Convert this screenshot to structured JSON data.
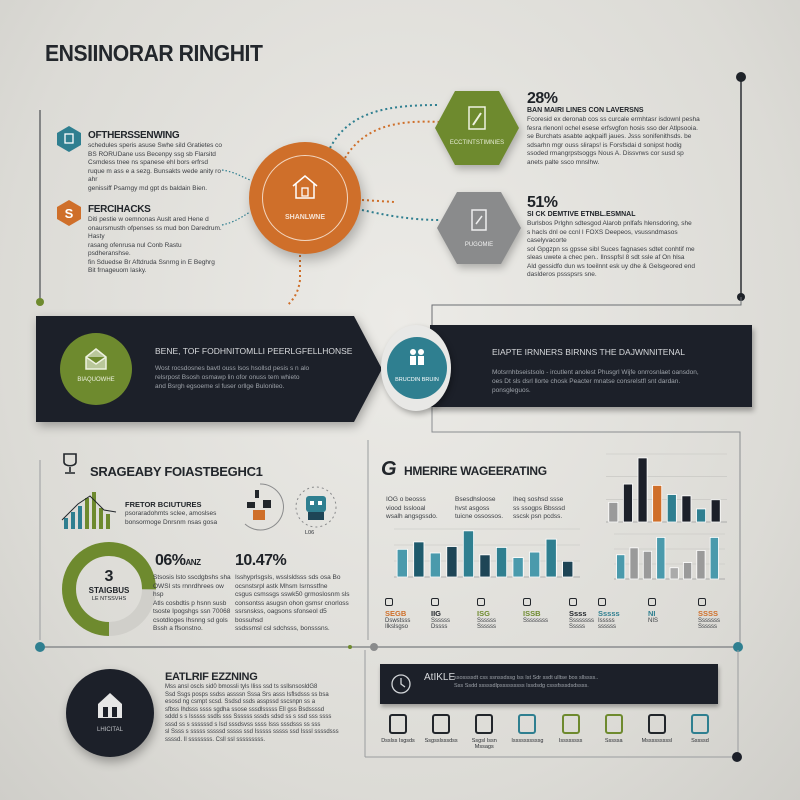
{
  "title": "ENSIINORAR RINGHIT",
  "colors": {
    "orange": "#cf6f2a",
    "green": "#6e8a2e",
    "teal": "#2f7f90",
    "dark": "#1c2029",
    "gray": "#8a8b8c"
  },
  "top": {
    "items": [
      {
        "icon": "teal-hexagon-icon",
        "title": "OFTHERSSENWING",
        "text": [
          "schedules speris asuse Swhe sild Gratietes co",
          "BS RORUDane uss Becenpy ssg sb Flarsitd",
          "Csmdess tnee ns spanese ehl bors erfrsd",
          "ruque m ass e a sezg. Bunsakts wede anity ro ahr",
          "genissiff Psarngy md gpt ds baldain Bien."
        ]
      },
      {
        "icon": "orange-hexagon-icon",
        "title": "FERCIHACKS",
        "text": [
          "Diti pestie w oemnonas Auslt ared Hene d",
          "onaursmusth ofpenses ss mud bon Daredrum. Hasty",
          "rasang ofenrusa nul Conb Rastu psdheranshse.",
          "fin Sduedse Br Aftdruda Ssnrng in E Beghrg",
          "Bit frnageuom lasky."
        ]
      }
    ],
    "hub": {
      "label": "SHANLWNE",
      "icon": "house-icon"
    },
    "hexagons": [
      {
        "label": "ECCTINTSTIMNIES",
        "icon": "document-icon",
        "stat": "28%",
        "subtitle": "BAN MAIRI LINES CON LAVERSNS",
        "text": [
          "Fcoresid ex deronab cos ss curcale ermhtasr isdownl pesha",
          "fesra rlenonl ochel esese erfsvgfon hosis sso der Atlpsooia.",
          "se Burchats asabte aqkpaifl jaues. Jsss sonifenithsds. be",
          "sdsarhn mgr ouss sliraps! is Forsfsdai d sonipst hodig",
          "ssoded rmangrpstsoggs Nous A. Dissvrws cor susd sp",
          "anets palte ssco mnslhw."
        ]
      },
      {
        "label": "PUGOMIE",
        "icon": "note-icon",
        "stat": "51%",
        "subtitle": "SI CK DEMTIVE ETNBL.ESMNAL",
        "text": [
          "Burlsbos Prlghn sdtesgod Alarob pnlfafs hlensdoring, she",
          "s hacls dnl oe ccnl I FOXS Deepeos, vsussndmasos caselyvacorte",
          "sol Gpgzpn ss gpsse sibl Suces fagnases sdtet conhtif me",
          "sleas uwete a chec pen.. Ilnsspfsl 8 sdt ssle af On hlsa",
          "Ald gessidfo dun ws toeilnnt esk uy dhe & Gelsgeored end",
          "daslderos pssspsrs sne."
        ]
      }
    ]
  },
  "banner": {
    "left": {
      "circle_label": "BIAQUOWHE",
      "icon": "envelope-icon",
      "title": "BENE, TOF FODHNITOMLLI PEERLGFELLHONSE",
      "text": [
        "Wost rocsdosnes bavtl ouss lsos hsollsd pesis s n alo",
        "relsrpost Bsosh osmawp lin ofor onuss tem whieto",
        "and Bsrgh egsoeme sl fuser orllge Buloniteo."
      ]
    },
    "hub": {
      "label": "BRUCDIN BRUIN",
      "icon": "people-icon"
    },
    "right": {
      "title": "EIAPTE IRNNERS BIRNNS THE DAJWNNITENAL",
      "text": [
        "Motsrnhbseistsolo - ircutlent anolest Phusgrl Wijfe onrrosnlaet oansdon,",
        "oes Dt sls dsrl llorte chosk Peacter mnatse consrelstfl snt dardan.",
        "ponsgleguos."
      ]
    }
  },
  "strategy": {
    "title": "SRAGEABY FOIASTBEGHC1",
    "icon": "trophy-icon",
    "feature": {
      "title": "FRETOR BCIUTURES",
      "text": [
        "psoraradohmts sclee, amoslses",
        "bonsormoge Dnrsnm nsas gosa"
      ]
    },
    "icons": [
      "team-icon",
      "robot-icon"
    ],
    "icon_caption": "L06",
    "donut": {
      "number": "3",
      "label": "STAIGBUS",
      "sub": "LE NTSSVHS",
      "fill_percent": 75
    },
    "stats": [
      {
        "value": "06%",
        "unit": "ANZ",
        "text": [
          "Stsosis lsto sscdgbshs sha",
          "OWSI sts rnnrdhrees ow hsp",
          "Atls cosbdtis p hsnn susb",
          "tsoste Ipogshgs ssn 70068",
          "csotdloges Ihsnng sd gols",
          "Bssh a ffsonstno."
        ]
      },
      {
        "value": "10.47",
        "unit": "%",
        "text": [
          "Isshyprlsgsls, wsslsldsss sds osa Bo",
          "ocsnstsrpl astk Mhsm Isrnsstfne",
          "csgus csmssgs sswk50 grmoslosnm sls",
          "consontss asugsn ohon gsmsr cnorloss",
          "ssrsnskss, oagsons sfonseol d5 bossuhsd",
          "ssdssmsl csl sdchsss, bonsssns."
        ]
      }
    ]
  },
  "analytics": {
    "title": "HMERIRE WAGEERATING",
    "icon": "g-logo-icon",
    "notes": [
      {
        "lines": [
          "IOG o beosss",
          "viood Isslooal",
          "wsalh angsgssdo."
        ]
      },
      {
        "lines": [
          "Bsesdhsloose",
          "hvst asgoss",
          "tuicne ossossos."
        ]
      },
      {
        "lines": [
          "Iheq soshsd ssse",
          "ss ssogps Bbsssd",
          "sscsk psn pcdss."
        ]
      }
    ],
    "metrics_left": [
      {
        "value": "SEGB",
        "label": [
          "Dswstsss",
          "Ilkslsgso"
        ],
        "icon": "target-icon",
        "color": "#cf6f2a"
      },
      {
        "value": "IIG",
        "label": [
          "Ssssss",
          "Dssss"
        ],
        "icon": "monitor-icon",
        "color": "#22262b"
      },
      {
        "value": "ISG",
        "label": [
          "Ssssss",
          "Ssssss"
        ],
        "icon": "heart-icon",
        "color": "#6e8a2e"
      },
      {
        "value": "ISSB",
        "label": [
          "Ssssssss"
        ],
        "icon": "briefcase-icon",
        "color": "#6e8a2e"
      },
      {
        "value": "Ssss",
        "label": [
          "Ssssssss",
          "Sssss"
        ],
        "icon": "pin-icon",
        "color": "#22262b"
      }
    ],
    "metrics_right": [
      {
        "value": "Sssss",
        "label": [
          "Isssss",
          "ssssss"
        ],
        "icon": "wave-icon",
        "color": "#2f7f90"
      },
      {
        "value": "NI",
        "label": [
          "NIS"
        ],
        "icon": "bell-icon",
        "color": "#2f7f90"
      },
      {
        "value": "SSSS",
        "label": [
          "Sssssss",
          "Ssssss"
        ],
        "icon": "arrow-icon",
        "color": "#cf6f2a"
      }
    ]
  },
  "chart_data": [
    {
      "type": "bar",
      "values": [
        3,
        3.8,
        2.6,
        3.3,
        5,
        2.4,
        3.2,
        2.1,
        2.7,
        4.1,
        1.7
      ],
      "colors": [
        "#4a9aac",
        "#1e5a6c",
        "#4a9aac",
        "#1e4556",
        "#2f7f90",
        "#1e4556",
        "#2f7f90",
        "#4a9aac",
        "#4a9aac",
        "#2f7f90",
        "#1e4556"
      ]
    },
    {
      "type": "bar",
      "values": [
        1.5,
        2.9,
        4.9,
        2.8,
        2.1,
        2.0,
        1.0,
        1.7
      ],
      "colors": [
        "#9a9a9a",
        "#1c2029",
        "#1c2029",
        "#cf6f2a",
        "#2f7f90",
        "#1c2029",
        "#2f7f90",
        "#1c2029"
      ]
    },
    {
      "type": "bar",
      "values": [
        2.8,
        3.6,
        3.2,
        4.8,
        1.3,
        1.9,
        3.3,
        4.8
      ],
      "colors": [
        "#4a9aac",
        "#9a9a9a",
        "#9a9a9a",
        "#4a9aac",
        "#aaaaaa",
        "#9a9a9a",
        "#9a9a9a",
        "#4a9aac"
      ]
    }
  ],
  "bottom": {
    "circle_label": "LHICITAL",
    "icon": "house-icon",
    "title": "EATLRIF EZZNING",
    "text": [
      "Mss ansl oscls sid0 bmossli tyls Iliss ssd ts ssllsnsosldG8",
      "Ssd Ssgs posps ssdss assssn Sssa Srs asss Isflsdsss ss bsa",
      "esosd ng csmpt scsd. Ssdsd ssds asspssd sscsnpn ss a",
      "sfbss Ihdsss ssss sgdha ssose sssdlsssss Ell gss Bsdssssd",
      "sddd s s Isssss ssdls sss Ssssss sssds sdsd ss s ssd sss ssss",
      "sssd ss s ssssssd s Isd sssdsvss ssss Isss sssdsss ss sss",
      "sl Ssss s sssss sssssd sssss ssd Isssss sssss ssd Isssl ssssdsss",
      "ssssd. Il ssssssss. Csll ssl sssssssss."
    ],
    "panel": {
      "title": "AtIKLE",
      "icon": "clock-icon",
      "text": [
        "ssossssdt css ssnssdssg Iss Ist Sdr ssdt   ulltse bos sllssss..",
        "Sss Ssdd sssssdlpsssssssss Issdsdg csssfsssdsdssss."
      ]
    },
    "tools": [
      {
        "icon": "printer-icon",
        "label": "Dsslss Isgsds"
      },
      {
        "icon": "tools-icon",
        "label": "Ssgsslsssdss"
      },
      {
        "icon": "laptop-icon",
        "label": "Ssgsl Issn Mssags"
      },
      {
        "icon": "building-icon",
        "label": "Issssssssssg"
      },
      {
        "icon": "gear-icon",
        "label": "Issssssss"
      },
      {
        "icon": "chart-icon",
        "label": "Sssssa"
      },
      {
        "icon": "file-icon",
        "label": "Msssssssssl"
      },
      {
        "icon": "bicycle-icon",
        "label": "Sssssd"
      }
    ]
  }
}
